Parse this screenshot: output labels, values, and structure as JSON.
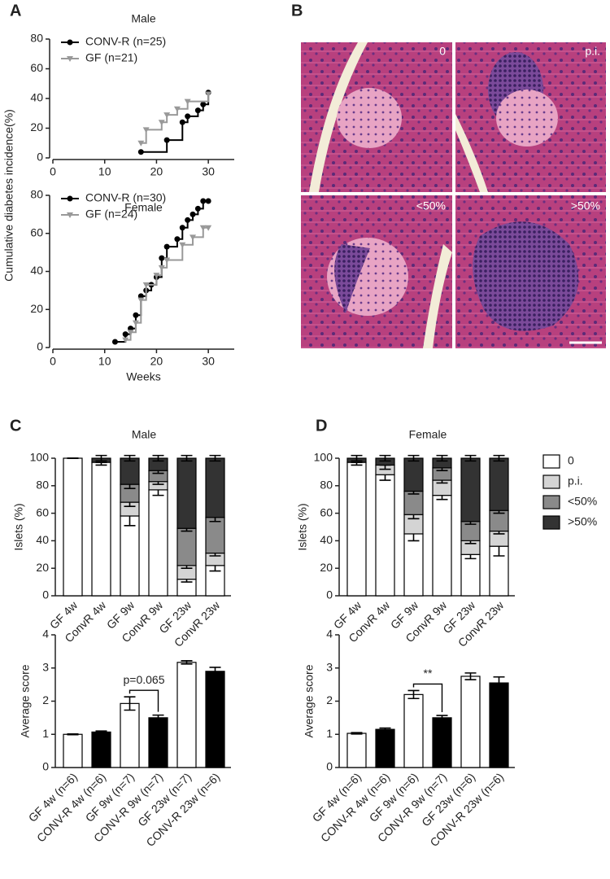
{
  "panel_labels": [
    "A",
    "B",
    "C",
    "D"
  ],
  "histology": {
    "labels": [
      "0",
      "p.i.",
      "<50%",
      ">50%"
    ]
  },
  "chart_data": [
    {
      "type": "step",
      "title": "Male",
      "ylabel": "Cumulative diabetes incidence(%)",
      "xlim": [
        0,
        35
      ],
      "xticks": [
        0,
        10,
        20,
        30
      ],
      "ylim": [
        0,
        80
      ],
      "yticks": [
        0,
        20,
        40,
        60,
        80
      ],
      "legend": "upper-left",
      "series": [
        {
          "name": "CONV-R (n=25)",
          "color": "#000000",
          "marker": "circle",
          "x": [
            17,
            22,
            25,
            26,
            28,
            29,
            30
          ],
          "values": [
            4,
            12,
            24,
            28,
            32,
            36,
            44
          ]
        },
        {
          "name": "GF (n=21)",
          "color": "#999999",
          "marker": "triangle",
          "x": [
            17,
            18,
            21,
            22,
            24,
            26,
            30
          ],
          "values": [
            10,
            19,
            24,
            29,
            33,
            38,
            43
          ]
        }
      ]
    },
    {
      "type": "step",
      "title": "Female",
      "xlabel": "Weeks",
      "xlim": [
        0,
        35
      ],
      "xticks": [
        0,
        10,
        20,
        30
      ],
      "ylim": [
        0,
        80
      ],
      "yticks": [
        0,
        20,
        40,
        60,
        80
      ],
      "legend": "upper-left",
      "series": [
        {
          "name": "CONV-R (n=30)",
          "color": "#000000",
          "marker": "circle",
          "x": [
            12,
            14,
            15,
            16,
            17,
            18,
            19,
            20,
            21,
            22,
            24,
            25,
            26,
            27,
            28,
            29,
            30
          ],
          "values": [
            3,
            7,
            10,
            17,
            27,
            30,
            33,
            37,
            47,
            53,
            57,
            63,
            67,
            70,
            73,
            77,
            77
          ]
        },
        {
          "name": "GF (n=24)",
          "color": "#999999",
          "marker": "triangle",
          "x": [
            14,
            15,
            16,
            17,
            18,
            20,
            21,
            22,
            25,
            27,
            29,
            30
          ],
          "values": [
            4,
            8,
            13,
            25,
            33,
            38,
            42,
            46,
            54,
            58,
            63,
            63
          ]
        }
      ]
    },
    {
      "type": "stacked_bar",
      "title": "Male",
      "ylabel": "Islets (%)",
      "categories": [
        "GF 4w",
        "ConvR 4w",
        "GF 9w",
        "ConvR 9w",
        "GF 23w",
        "ConvR 23w"
      ],
      "ylim": [
        0,
        100
      ],
      "yticks": [
        0,
        20,
        40,
        60,
        80,
        100
      ],
      "series": [
        {
          "color": "#ffffff",
          "values": [
            100,
            97,
            58,
            77,
            12,
            22
          ],
          "errors": [
            0,
            2,
            7,
            4,
            2,
            4
          ]
        },
        {
          "color": "#d4d4d4",
          "values": [
            0,
            0,
            10,
            6,
            10,
            9
          ],
          "errors": [
            0,
            0,
            3,
            2,
            2,
            2
          ]
        },
        {
          "color": "#8a8a8a",
          "values": [
            0,
            0,
            13,
            8,
            27,
            26
          ],
          "errors": [
            0,
            0,
            3,
            2,
            2,
            3
          ]
        },
        {
          "color": "#333333",
          "values": [
            0,
            3,
            19,
            9,
            51,
            43
          ],
          "errors": [
            0,
            2,
            2,
            2,
            2,
            2
          ]
        }
      ]
    },
    {
      "type": "stacked_bar",
      "title": "Female",
      "ylabel": "Islets (%)",
      "legend": "outside-right",
      "categories": [
        "GF 4w",
        "ConvR 4w",
        "GF 9w",
        "ConvR 9w",
        "GF 23w",
        "ConvR 23w"
      ],
      "ylim": [
        0,
        100
      ],
      "yticks": [
        0,
        20,
        40,
        60,
        80,
        100
      ],
      "series": [
        {
          "name": "0",
          "color": "#ffffff",
          "values": [
            97,
            88,
            45,
            73,
            30,
            36
          ],
          "errors": [
            2,
            4,
            5,
            3,
            3,
            7
          ]
        },
        {
          "name": "p.i.",
          "color": "#d4d4d4",
          "values": [
            0,
            7,
            14,
            11,
            10,
            11
          ],
          "errors": [
            0,
            3,
            3,
            2,
            2,
            2
          ]
        },
        {
          "name": "<50%",
          "color": "#8a8a8a",
          "values": [
            0,
            0,
            17,
            9,
            14,
            15
          ],
          "errors": [
            0,
            0,
            2,
            2,
            2,
            2
          ]
        },
        {
          "name": ">50%",
          "color": "#333333",
          "values": [
            3,
            5,
            24,
            7,
            46,
            38
          ],
          "errors": [
            2,
            2,
            2,
            2,
            2,
            2
          ]
        }
      ]
    },
    {
      "type": "bar",
      "ylabel": "Average score",
      "categories": [
        "GF 4w (n=6)",
        "CONV-R 4w (n=6)",
        "GF 9w (n=7)",
        "CONV-R 9w (n=7)",
        "GF 23w (n=7)",
        "CONV-R 23w (n=6)"
      ],
      "values": [
        1.0,
        1.07,
        1.93,
        1.5,
        3.17,
        2.9
      ],
      "errors": [
        0.01,
        0.03,
        0.2,
        0.08,
        0.05,
        0.12
      ],
      "colors": [
        "#ffffff",
        "#000000",
        "#ffffff",
        "#000000",
        "#ffffff",
        "#000000"
      ],
      "ylim": [
        0,
        4
      ],
      "yticks": [
        0,
        1,
        2,
        3,
        4
      ],
      "annotation": {
        "text": "p=0.065",
        "between": [
          2,
          3
        ]
      }
    },
    {
      "type": "bar",
      "ylabel": "Average score",
      "categories": [
        "GF 4w (n=6)",
        "CONV-R 4w (n=6)",
        "GF 9w (n=6)",
        "CONV-R 9w (n=7)",
        "GF 23w (n=6)",
        "CONV-R 23w (n=6)"
      ],
      "values": [
        1.03,
        1.15,
        2.2,
        1.5,
        2.75,
        2.55
      ],
      "errors": [
        0.02,
        0.04,
        0.12,
        0.07,
        0.1,
        0.18
      ],
      "colors": [
        "#ffffff",
        "#000000",
        "#ffffff",
        "#000000",
        "#ffffff",
        "#000000"
      ],
      "ylim": [
        0,
        4
      ],
      "yticks": [
        0,
        1,
        2,
        3,
        4
      ],
      "annotation": {
        "text": "**",
        "between": [
          2,
          3
        ]
      }
    }
  ]
}
